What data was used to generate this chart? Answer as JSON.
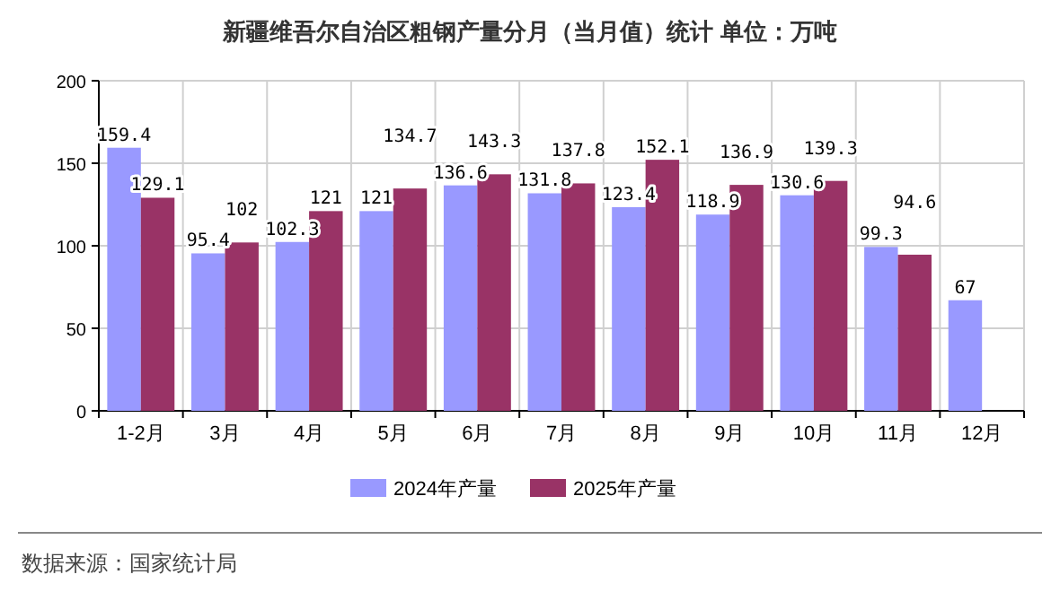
{
  "chart_data": {
    "type": "bar",
    "title": "新疆维吾尔自治区粗钢产量分月（当月值）统计  单位：万吨",
    "categories": [
      "1-2月",
      "3月",
      "4月",
      "5月",
      "6月",
      "7月",
      "8月",
      "9月",
      "10月",
      "11月",
      "12月"
    ],
    "series": [
      {
        "name": "2024年产量",
        "color": "#9999ff",
        "values": [
          159.4,
          95.4,
          102.3,
          121,
          136.6,
          131.8,
          123.4,
          118.9,
          130.6,
          99.3,
          67
        ]
      },
      {
        "name": "2025年产量",
        "color": "#993366",
        "values": [
          129.1,
          102,
          121,
          134.7,
          143.3,
          137.8,
          152.1,
          136.9,
          139.3,
          94.6,
          null
        ]
      }
    ],
    "ylim": [
      0,
      200
    ],
    "yticks": [
      0,
      50,
      100,
      150,
      200
    ],
    "grid": true,
    "legend": "bottom",
    "data_labels": true,
    "annotations": [
      "数据来源：国家统计局"
    ]
  }
}
